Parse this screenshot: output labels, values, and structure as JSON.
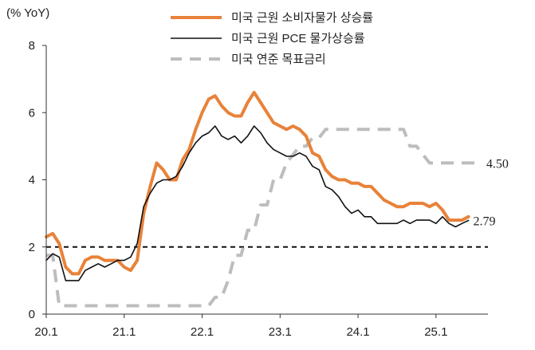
{
  "chart_data": {
    "type": "line",
    "ylabel": "(% YoY)",
    "ylim": [
      0,
      8
    ],
    "yticks": [
      0,
      2,
      4,
      6,
      8
    ],
    "xlim": [
      "2020-01",
      "2025-09"
    ],
    "xticks": [
      {
        "date": "2020-01",
        "label": "20.1"
      },
      {
        "date": "2021-01",
        "label": "21.1"
      },
      {
        "date": "2022-01",
        "label": "22.1"
      },
      {
        "date": "2023-01",
        "label": "23.1"
      },
      {
        "date": "2024-01",
        "label": "24.1"
      },
      {
        "date": "2025-01",
        "label": "25.1"
      }
    ],
    "reference_line": {
      "y": 2,
      "style": "dashed",
      "color": "#111111"
    },
    "legend_position": "top-center",
    "series": [
      {
        "name": "미국 근원 소비자물가 상승률",
        "color": "#E8823A",
        "style": "solid",
        "start": "2020-01",
        "values": [
          2.3,
          2.4,
          2.1,
          1.4,
          1.2,
          1.2,
          1.6,
          1.7,
          1.7,
          1.6,
          1.6,
          1.6,
          1.4,
          1.3,
          1.6,
          3.0,
          3.8,
          4.5,
          4.3,
          4.0,
          4.0,
          4.6,
          4.9,
          5.5,
          6.0,
          6.4,
          6.5,
          6.2,
          6.0,
          5.9,
          5.9,
          6.3,
          6.6,
          6.3,
          6.0,
          5.7,
          5.6,
          5.5,
          5.6,
          5.5,
          5.3,
          4.8,
          4.7,
          4.3,
          4.1,
          4.0,
          4.0,
          3.9,
          3.9,
          3.8,
          3.8,
          3.6,
          3.4,
          3.3,
          3.2,
          3.2,
          3.3,
          3.3,
          3.3,
          3.2,
          3.3,
          3.1,
          2.8,
          2.8,
          2.8,
          2.9
        ],
        "end_label": ""
      },
      {
        "name": "미국 근원 PCE 물가상승률",
        "color": "#111111",
        "style": "solid",
        "start": "2020-01",
        "values": [
          1.6,
          1.8,
          1.7,
          1.0,
          1.0,
          1.0,
          1.3,
          1.4,
          1.5,
          1.4,
          1.5,
          1.6,
          1.6,
          1.7,
          2.1,
          3.2,
          3.6,
          3.9,
          4.0,
          4.0,
          4.1,
          4.4,
          4.8,
          5.1,
          5.3,
          5.4,
          5.6,
          5.3,
          5.2,
          5.3,
          5.1,
          5.3,
          5.6,
          5.4,
          5.1,
          4.9,
          4.8,
          4.7,
          4.7,
          4.8,
          4.7,
          4.4,
          4.3,
          3.8,
          3.7,
          3.5,
          3.2,
          3.0,
          3.1,
          2.9,
          2.9,
          2.7,
          2.7,
          2.7,
          2.7,
          2.8,
          2.7,
          2.8,
          2.8,
          2.8,
          2.7,
          2.9,
          2.7,
          2.6,
          2.7,
          2.79
        ],
        "end_label": "2.79"
      },
      {
        "name": "미국 연준 목표금리",
        "color": "#BDBDBD",
        "style": "dashed",
        "start": "2020-01",
        "values": [
          1.75,
          1.75,
          0.25,
          0.25,
          0.25,
          0.25,
          0.25,
          0.25,
          0.25,
          0.25,
          0.25,
          0.25,
          0.25,
          0.25,
          0.25,
          0.25,
          0.25,
          0.25,
          0.25,
          0.25,
          0.25,
          0.25,
          0.25,
          0.25,
          0.25,
          0.25,
          0.5,
          0.5,
          1.0,
          1.75,
          1.75,
          2.5,
          2.5,
          3.25,
          3.25,
          4.0,
          4.0,
          4.5,
          4.75,
          5.0,
          5.0,
          5.25,
          5.25,
          5.5,
          5.5,
          5.5,
          5.5,
          5.5,
          5.5,
          5.5,
          5.5,
          5.5,
          5.5,
          5.5,
          5.5,
          5.5,
          5.0,
          5.0,
          4.75,
          4.5,
          4.5,
          4.5,
          4.5,
          4.5,
          4.5,
          4.5,
          4.5,
          4.5
        ],
        "end_label": "4.50"
      }
    ]
  }
}
